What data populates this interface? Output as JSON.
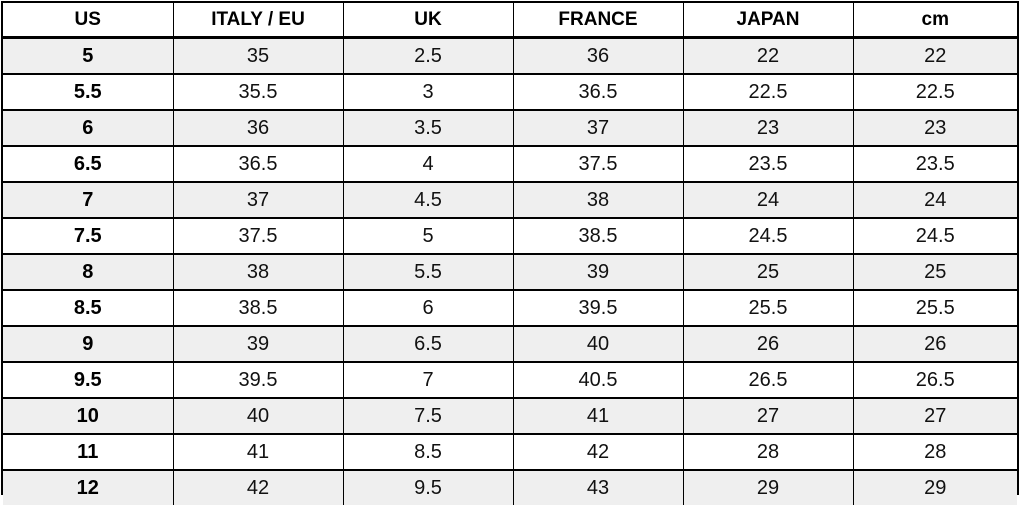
{
  "table": {
    "headers": [
      "US",
      "ITALY / EU",
      "UK",
      "FRANCE",
      "JAPAN",
      "cm"
    ],
    "rows": [
      [
        "5",
        "35",
        "2.5",
        "36",
        "22",
        "22"
      ],
      [
        "5.5",
        "35.5",
        "3",
        "36.5",
        "22.5",
        "22.5"
      ],
      [
        "6",
        "36",
        "3.5",
        "37",
        "23",
        "23"
      ],
      [
        "6.5",
        "36.5",
        "4",
        "37.5",
        "23.5",
        "23.5"
      ],
      [
        "7",
        "37",
        "4.5",
        "38",
        "24",
        "24"
      ],
      [
        "7.5",
        "37.5",
        "5",
        "38.5",
        "24.5",
        "24.5"
      ],
      [
        "8",
        "38",
        "5.5",
        "39",
        "25",
        "25"
      ],
      [
        "8.5",
        "38.5",
        "6",
        "39.5",
        "25.5",
        "25.5"
      ],
      [
        "9",
        "39",
        "6.5",
        "40",
        "26",
        "26"
      ],
      [
        "9.5",
        "39.5",
        "7",
        "40.5",
        "26.5",
        "26.5"
      ],
      [
        "10",
        "40",
        "7.5",
        "41",
        "27",
        "27"
      ],
      [
        "11",
        "41",
        "8.5",
        "42",
        "28",
        "28"
      ],
      [
        "12",
        "42",
        "9.5",
        "43",
        "29",
        "29"
      ]
    ]
  },
  "colors": {
    "row_shade": "#efefef",
    "row_plain": "#ffffff",
    "border": "#000000"
  }
}
